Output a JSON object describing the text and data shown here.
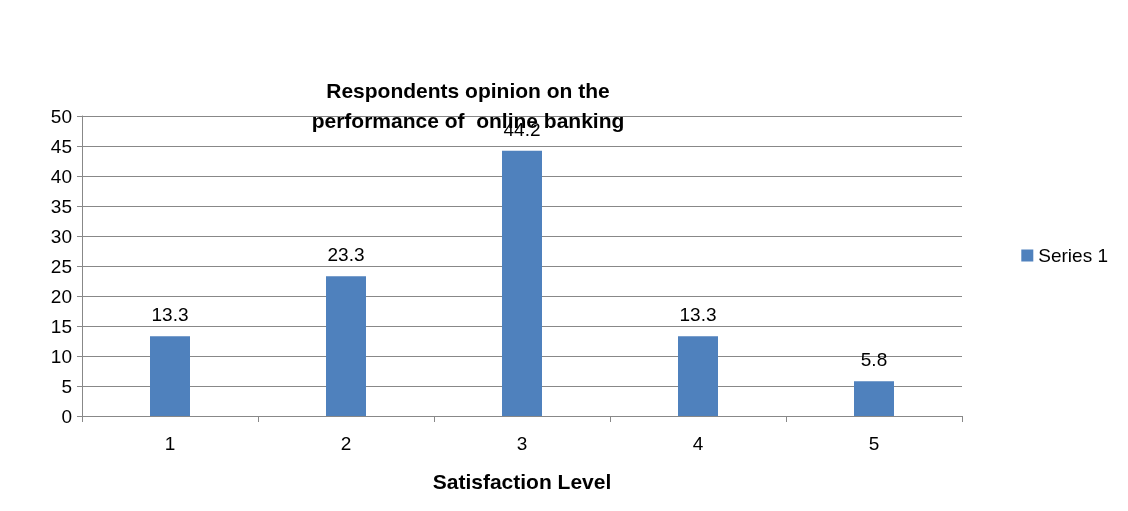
{
  "chart_data": {
    "type": "bar",
    "title": "Respondents opinion on the\nperformance of  online banking",
    "xlabel": "Satisfaction Level",
    "categories": [
      "1",
      "2",
      "3",
      "4",
      "5"
    ],
    "series": [
      {
        "name": "Series 1",
        "color": "#4f81bd",
        "values": [
          13.3,
          23.3,
          44.2,
          13.3,
          5.8
        ]
      }
    ],
    "ylim": [
      0,
      50
    ],
    "yticks": [
      0,
      5,
      10,
      15,
      20,
      25,
      30,
      35,
      40,
      45,
      50
    ],
    "grid": "y",
    "legend": "right",
    "data_labels": true
  }
}
